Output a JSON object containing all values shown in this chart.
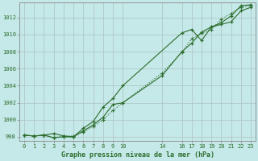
{
  "background_color": "#c5e8e8",
  "grid_color": "#b0c8c8",
  "line_color": "#2d6e2d",
  "title": "Graphe pression niveau de la mer (hPa)",
  "ylabel_values": [
    998,
    1000,
    1002,
    1004,
    1006,
    1008,
    1010,
    1012
  ],
  "xtick_positions": [
    0,
    1,
    2,
    3,
    4,
    5,
    6,
    7,
    8,
    9,
    10,
    14,
    16,
    17,
    18,
    19,
    20,
    21,
    22,
    23
  ],
  "xtick_labels": [
    "0",
    "1",
    "2",
    "3",
    "4",
    "5",
    "6",
    "7",
    "8",
    "9",
    "10",
    "14",
    "16",
    "17",
    "18",
    "19",
    "20",
    "21",
    "22",
    "23"
  ],
  "line1_x": [
    0,
    1,
    2,
    3,
    4,
    5,
    6,
    7,
    8,
    9,
    10,
    16,
    17,
    18,
    19,
    20,
    21,
    22,
    23
  ],
  "line1_y": [
    998.2,
    998.1,
    998.2,
    997.9,
    998.0,
    998.0,
    999.0,
    999.8,
    1001.5,
    1002.5,
    1004.0,
    1010.2,
    1010.6,
    1009.3,
    1010.9,
    1011.2,
    1011.5,
    1012.8,
    1013.2
  ],
  "line2_x": [
    0,
    1,
    2,
    3,
    4,
    5,
    6,
    7,
    8,
    9,
    10,
    14,
    16,
    17,
    18,
    19,
    20,
    21,
    22,
    23
  ],
  "line2_y": [
    998.2,
    998.1,
    998.2,
    998.4,
    998.1,
    998.0,
    998.7,
    999.4,
    1000.3,
    1001.8,
    1002.0,
    1005.2,
    1008.0,
    1009.0,
    1010.3,
    1010.9,
    1011.4,
    1012.2,
    1013.4,
    1013.5
  ],
  "line3_x": [
    0,
    1,
    2,
    3,
    4,
    5,
    6,
    7,
    8,
    9,
    10,
    14,
    16,
    17,
    18,
    19,
    20,
    21,
    22,
    23
  ],
  "line3_y": [
    998.2,
    998.1,
    998.2,
    997.9,
    998.1,
    998.1,
    998.6,
    999.2,
    1000.0,
    1001.1,
    1002.0,
    1005.5,
    1007.9,
    1009.5,
    1010.2,
    1010.6,
    1011.8,
    1012.5,
    1013.2,
    1013.4
  ],
  "ylim": [
    997.5,
    1013.8
  ],
  "xlim": [
    -0.5,
    23.5
  ]
}
